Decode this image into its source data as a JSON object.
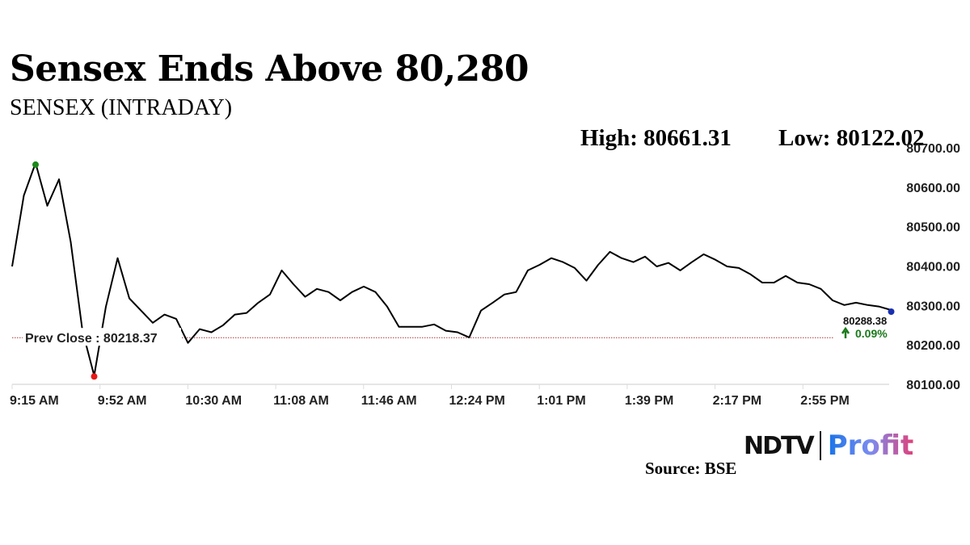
{
  "headline": "Sensex Ends Above 80,280",
  "chart_data": {
    "type": "line",
    "title": "SENSEX (INTRADAY)",
    "high_label": "High: 80661.31",
    "low_label": "Low: 80122.02",
    "high": 80661.31,
    "low": 80122.02,
    "prev_close_label": "Prev Close : 80218.37",
    "prev_close": 80218.37,
    "last_value_label": "80288.38",
    "last_value": 80288.38,
    "change_label": "0.09%",
    "change_icon": "arrow-up-icon",
    "ylim": [
      80100,
      80700
    ],
    "y_ticks": [
      "80700.00",
      "80600.00",
      "80500.00",
      "80400.00",
      "80300.00",
      "80200.00",
      "80100.00"
    ],
    "x_ticks": [
      "9:15 AM",
      "9:52 AM",
      "10:30 AM",
      "11:08 AM",
      "11:46 AM",
      "12:24 PM",
      "1:01 PM",
      "1:39 PM",
      "2:17 PM",
      "2:55 PM"
    ],
    "xlim": [
      "9:15",
      "15:30"
    ],
    "grid": false,
    "colors": {
      "line": "#000000",
      "high_marker": "#1a8a1a",
      "low_marker": "#e81818",
      "last_marker": "#1a2fb0",
      "prev_close_line": "#b03030",
      "change": "#1a7a1a"
    },
    "points": [
      [
        "9:15",
        80399
      ],
      [
        "9:20",
        80579
      ],
      [
        "9:25",
        80661.31
      ],
      [
        "9:30",
        80553
      ],
      [
        "9:35",
        80620
      ],
      [
        "9:40",
        80461
      ],
      [
        "9:45",
        80236
      ],
      [
        "9:50",
        80122.02
      ],
      [
        "9:55",
        80297
      ],
      [
        "10:00",
        80420
      ],
      [
        "10:05",
        80318
      ],
      [
        "10:10",
        80287
      ],
      [
        "10:15",
        80256
      ],
      [
        "10:20",
        80277
      ],
      [
        "10:25",
        80266
      ],
      [
        "10:30",
        80205
      ],
      [
        "10:35",
        80240
      ],
      [
        "10:40",
        80232
      ],
      [
        "10:45",
        80250
      ],
      [
        "10:50",
        80277
      ],
      [
        "10:55",
        80281
      ],
      [
        "11:00",
        80307
      ],
      [
        "11:05",
        80328
      ],
      [
        "11:10",
        80389
      ],
      [
        "11:15",
        80354
      ],
      [
        "11:20",
        80322
      ],
      [
        "11:25",
        80342
      ],
      [
        "11:30",
        80334
      ],
      [
        "11:35",
        80313
      ],
      [
        "11:40",
        80334
      ],
      [
        "11:45",
        80348
      ],
      [
        "11:50",
        80334
      ],
      [
        "11:55",
        80297
      ],
      [
        "12:00",
        80246
      ],
      [
        "12:05",
        80246
      ],
      [
        "12:10",
        80246
      ],
      [
        "12:15",
        80252
      ],
      [
        "12:20",
        80236
      ],
      [
        "12:25",
        80232
      ],
      [
        "12:30",
        80219
      ],
      [
        "12:35",
        80287
      ],
      [
        "12:40",
        80307
      ],
      [
        "12:45",
        80328
      ],
      [
        "12:50",
        80334
      ],
      [
        "12:55",
        80389
      ],
      [
        "13:00",
        80403
      ],
      [
        "13:05",
        80420
      ],
      [
        "13:10",
        80410
      ],
      [
        "13:15",
        80395
      ],
      [
        "13:20",
        80363
      ],
      [
        "13:25",
        80403
      ],
      [
        "13:30",
        80436
      ],
      [
        "13:35",
        80420
      ],
      [
        "13:40",
        80410
      ],
      [
        "13:45",
        80424
      ],
      [
        "13:50",
        80399
      ],
      [
        "13:55",
        80408
      ],
      [
        "14:00",
        80389
      ],
      [
        "14:05",
        80410
      ],
      [
        "14:10",
        80430
      ],
      [
        "14:15",
        80416
      ],
      [
        "14:20",
        80399
      ],
      [
        "14:25",
        80395
      ],
      [
        "14:30",
        80379
      ],
      [
        "14:35",
        80358
      ],
      [
        "14:40",
        80358
      ],
      [
        "14:45",
        80375
      ],
      [
        "14:50",
        80358
      ],
      [
        "14:55",
        80354
      ],
      [
        "15:00",
        80342
      ],
      [
        "15:05",
        80313
      ],
      [
        "15:10",
        80301
      ],
      [
        "15:15",
        80307
      ],
      [
        "15:20",
        80301
      ],
      [
        "15:25",
        80297
      ],
      [
        "15:30",
        80288.38
      ]
    ]
  },
  "footer": {
    "source": "Source: BSE",
    "logo_left": "NDTV",
    "logo_right": "Profit"
  }
}
